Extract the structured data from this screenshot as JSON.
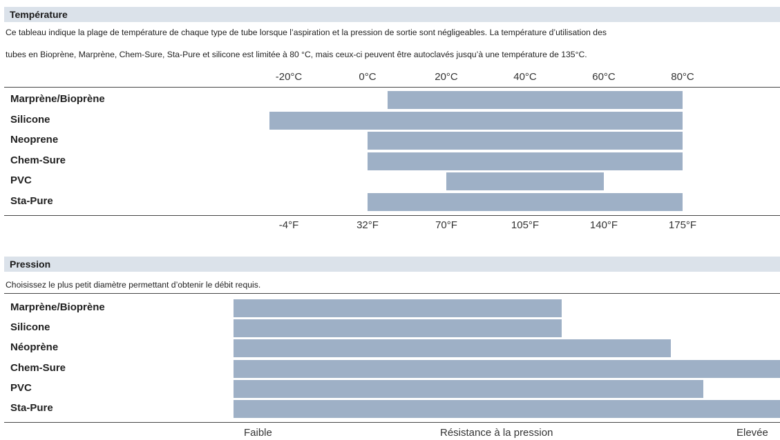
{
  "temperature": {
    "title": "Température",
    "desc_line1": "Ce tableau indique la plage de température de chaque type de tube lorsque l’aspiration et la pression de sortie sont négligeables. La température d’utilisation des",
    "desc_line2": "tubes en Bioprène, Marprène, Chem-Sure, Sta-Pure et silicone est limitée à 80 °C, mais ceux-ci peuvent être autoclavés jusqu’à une température de 135°C.",
    "chart_data": {
      "type": "bar",
      "orientation": "horizontal-range",
      "xlim_c": [
        -20,
        80
      ],
      "ticks_c": [
        "-20°C",
        "0°C",
        "20°C",
        "40°C",
        "60°C",
        "80°C"
      ],
      "tick_values_c": [
        -20,
        0,
        20,
        40,
        60,
        80
      ],
      "ticks_f": [
        "-4°F",
        "32°F",
        "70°F",
        "105°F",
        "140°F",
        "175°F"
      ],
      "categories": [
        "Marprène/Bioprène",
        "Silicone",
        "Neoprene",
        "Chem-Sure",
        "PVC",
        "Sta-Pure"
      ],
      "ranges": [
        [
          5,
          80
        ],
        [
          -25,
          80
        ],
        [
          0,
          80
        ],
        [
          0,
          80
        ],
        [
          20,
          60
        ],
        [
          0,
          80
        ]
      ],
      "bar_color": "#9eb0c6"
    }
  },
  "pressure": {
    "title": "Pression",
    "desc": "Choisissez le plus petit diamètre permettant d’obtenir le débit requis.",
    "chart_data": {
      "type": "bar",
      "orientation": "horizontal",
      "categories": [
        "Marprène/Bioprène",
        "Silicone",
        "Néoprène",
        "Chem-Sure",
        "PVC",
        "Sta-Pure"
      ],
      "values": [
        0.6,
        0.6,
        0.8,
        1.0,
        0.86,
        1.0
      ],
      "xlim": [
        0,
        1
      ],
      "xlabel": "Résistance à la pression",
      "low_label": "Faible",
      "high_label": "Elevée",
      "bar_color": "#9eb0c6"
    }
  }
}
